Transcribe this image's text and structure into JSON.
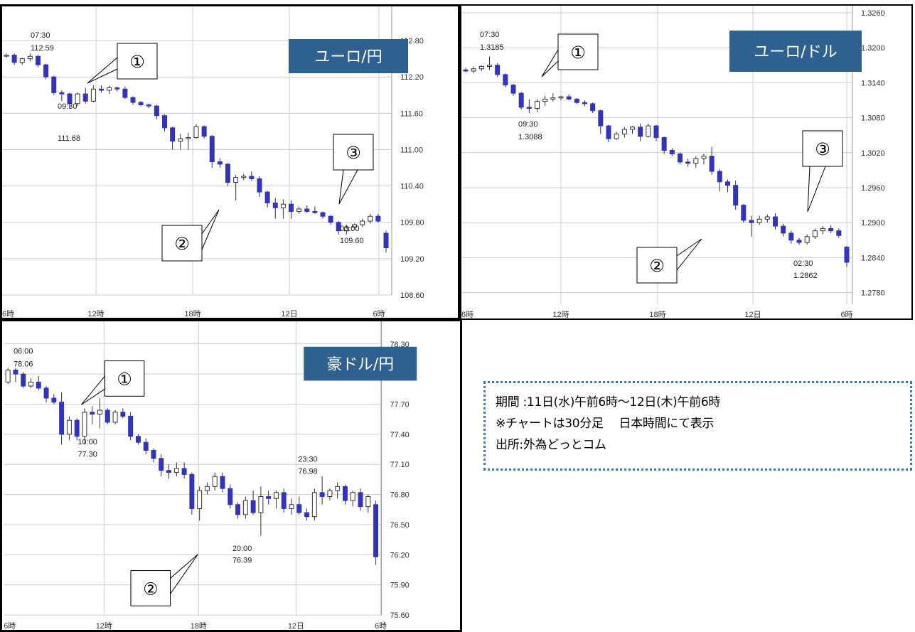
{
  "info": {
    "line1": "期間 :11日(水)午前6時～12日(木)午前6時",
    "line2": "※チャートは30分足　 日本時間にて表示",
    "line3": "出所:外為どっとコム"
  },
  "colors": {
    "bearish": "#3333bb",
    "bullish": "#ffffff",
    "badge": "#2e6190",
    "grid": "#cccccc"
  },
  "chart_data": [
    {
      "id": "eurjpy",
      "type": "candlestick",
      "title": "ユーロ/円",
      "ylim": [
        108.6,
        113.2
      ],
      "yticks": [
        "112.80",
        "112.20",
        "111.60",
        "111.00",
        "110.40",
        "109.80",
        "109.20",
        "108.60"
      ],
      "xticks": [
        "6時",
        "12時",
        "18時",
        "12日",
        "6時"
      ],
      "callouts": [
        "①",
        "②",
        "③"
      ],
      "annotations": [
        {
          "time": "07:30",
          "value": "112.59"
        },
        {
          "time": "09:30",
          "value": "111.68"
        },
        {
          "time": "03:00",
          "value": "109.60"
        }
      ],
      "ohlc": [
        [
          112.56,
          112.59,
          112.52,
          112.56
        ],
        [
          112.56,
          112.59,
          112.4,
          112.44
        ],
        [
          112.44,
          112.52,
          112.4,
          112.5
        ],
        [
          112.5,
          112.59,
          112.46,
          112.54
        ],
        [
          112.54,
          112.56,
          112.36,
          112.4
        ],
        [
          112.4,
          112.42,
          112.16,
          112.2
        ],
        [
          112.2,
          112.22,
          111.9,
          111.94
        ],
        [
          111.94,
          111.98,
          111.8,
          111.92
        ],
        [
          111.92,
          111.94,
          111.68,
          111.76
        ],
        [
          111.76,
          111.94,
          111.72,
          111.92
        ],
        [
          111.92,
          112.02,
          111.76,
          111.8
        ],
        [
          111.8,
          112.06,
          111.78,
          112.0
        ],
        [
          112.0,
          112.06,
          111.94,
          111.98
        ],
        [
          111.98,
          112.06,
          111.92,
          112.02
        ],
        [
          112.02,
          112.04,
          111.96,
          112.0
        ],
        [
          112.0,
          112.04,
          111.84,
          111.86
        ],
        [
          111.86,
          111.88,
          111.74,
          111.78
        ],
        [
          111.78,
          111.8,
          111.72,
          111.74
        ],
        [
          111.74,
          111.76,
          111.68,
          111.72
        ],
        [
          111.72,
          111.74,
          111.5,
          111.56
        ],
        [
          111.56,
          111.58,
          111.3,
          111.36
        ],
        [
          111.36,
          111.38,
          111.0,
          111.14
        ],
        [
          111.14,
          111.26,
          111.0,
          111.18
        ],
        [
          111.18,
          111.28,
          111.0,
          111.2
        ],
        [
          111.2,
          111.42,
          111.18,
          111.38
        ],
        [
          111.38,
          111.4,
          111.18,
          111.22
        ],
        [
          111.22,
          111.24,
          110.7,
          110.8
        ],
        [
          110.8,
          110.86,
          110.7,
          110.76
        ],
        [
          110.76,
          110.78,
          110.4,
          110.46
        ],
        [
          110.46,
          110.58,
          110.16,
          110.54
        ],
        [
          110.54,
          110.6,
          110.5,
          110.56
        ],
        [
          110.56,
          110.64,
          110.48,
          110.52
        ],
        [
          110.52,
          110.56,
          110.22,
          110.3
        ],
        [
          110.3,
          110.32,
          110.04,
          110.12
        ],
        [
          110.12,
          110.2,
          109.86,
          110.04
        ],
        [
          110.04,
          110.18,
          109.86,
          110.1
        ],
        [
          110.1,
          110.16,
          109.86,
          109.98
        ],
        [
          109.98,
          110.06,
          109.94,
          110.02
        ],
        [
          110.02,
          110.08,
          109.96,
          109.98
        ],
        [
          109.98,
          110.06,
          109.94,
          109.96
        ],
        [
          109.96,
          109.98,
          109.86,
          109.9
        ],
        [
          109.9,
          109.92,
          109.76,
          109.8
        ],
        [
          109.8,
          109.82,
          109.6,
          109.66
        ],
        [
          109.66,
          109.76,
          109.6,
          109.72
        ],
        [
          109.72,
          109.78,
          109.68,
          109.76
        ],
        [
          109.76,
          109.86,
          109.72,
          109.82
        ],
        [
          109.82,
          109.94,
          109.78,
          109.9
        ],
        [
          109.9,
          109.94,
          109.8,
          109.82
        ],
        [
          109.62,
          109.66,
          109.3,
          109.38
        ]
      ]
    },
    {
      "id": "eurusd",
      "type": "candlestick",
      "title": "ユーロ/ドル",
      "ylim": [
        1.276,
        1.326
      ],
      "yticks": [
        "1.3260",
        "1.3200",
        "1.3140",
        "1.3080",
        "1.3020",
        "1.2960",
        "1.2900",
        "1.2840",
        "1.2780"
      ],
      "xticks": [
        "6時",
        "12時",
        "18時",
        "12日",
        "6時"
      ],
      "callouts": [
        "①",
        "③",
        "②"
      ],
      "annotations": [
        {
          "time": "07:30",
          "value": "1.3185"
        },
        {
          "time": "09:30",
          "value": "1.3088"
        },
        {
          "time": "02:30",
          "value": "1.2862"
        }
      ],
      "ohlc": [
        [
          1.3162,
          1.3166,
          1.3158,
          1.316
        ],
        [
          1.316,
          1.3168,
          1.3156,
          1.3164
        ],
        [
          1.3164,
          1.317,
          1.316,
          1.3168
        ],
        [
          1.3168,
          1.3185,
          1.3162,
          1.317
        ],
        [
          1.317,
          1.3174,
          1.315,
          1.3154
        ],
        [
          1.3154,
          1.3156,
          1.3132,
          1.3136
        ],
        [
          1.3136,
          1.3138,
          1.3118,
          1.3122
        ],
        [
          1.3122,
          1.3124,
          1.3094,
          1.3098
        ],
        [
          1.3098,
          1.3112,
          1.3088,
          1.3096
        ],
        [
          1.3096,
          1.3112,
          1.309,
          1.3108
        ],
        [
          1.3108,
          1.3118,
          1.31,
          1.3112
        ],
        [
          1.3112,
          1.3122,
          1.3108,
          1.3114
        ],
        [
          1.3114,
          1.3118,
          1.311,
          1.3116
        ],
        [
          1.3116,
          1.312,
          1.311,
          1.3112
        ],
        [
          1.3112,
          1.3114,
          1.3104,
          1.3106
        ],
        [
          1.3106,
          1.311,
          1.31,
          1.3104
        ],
        [
          1.3104,
          1.3106,
          1.3088,
          1.3092
        ],
        [
          1.3092,
          1.3094,
          1.3052,
          1.3066
        ],
        [
          1.3066,
          1.3068,
          1.3038,
          1.3044
        ],
        [
          1.3044,
          1.3056,
          1.3042,
          1.3052
        ],
        [
          1.3052,
          1.3064,
          1.3046,
          1.306
        ],
        [
          1.306,
          1.3066,
          1.3052,
          1.3064
        ],
        [
          1.3064,
          1.307,
          1.304,
          1.3048
        ],
        [
          1.3048,
          1.307,
          1.3046,
          1.3066
        ],
        [
          1.3066,
          1.3068,
          1.304,
          1.3046
        ],
        [
          1.3046,
          1.3048,
          1.3018,
          1.3024
        ],
        [
          1.3024,
          1.3028,
          1.3014,
          1.3018
        ],
        [
          1.3018,
          1.302,
          1.3,
          1.3004
        ],
        [
          1.3004,
          1.301,
          1.2996,
          1.3002
        ],
        [
          1.3002,
          1.3014,
          1.2994,
          1.301
        ],
        [
          1.301,
          1.3018,
          1.3,
          1.3014
        ],
        [
          1.3014,
          1.303,
          1.2982,
          1.2988
        ],
        [
          1.2988,
          1.2992,
          1.2954,
          1.297
        ],
        [
          1.297,
          1.2974,
          1.2952,
          1.2964
        ],
        [
          1.2964,
          1.2972,
          1.2922,
          1.293
        ],
        [
          1.293,
          1.2932,
          1.29,
          1.2904
        ],
        [
          1.2904,
          1.2912,
          1.2876,
          1.29
        ],
        [
          1.29,
          1.2912,
          1.2896,
          1.2906
        ],
        [
          1.2906,
          1.2914,
          1.29,
          1.291
        ],
        [
          1.291,
          1.2916,
          1.2888,
          1.2894
        ],
        [
          1.2894,
          1.2898,
          1.2876,
          1.2882
        ],
        [
          1.2882,
          1.2886,
          1.2864,
          1.287
        ],
        [
          1.287,
          1.2874,
          1.2862,
          1.2866
        ],
        [
          1.2866,
          1.288,
          1.2862,
          1.2876
        ],
        [
          1.2876,
          1.289,
          1.2872,
          1.2886
        ],
        [
          1.2886,
          1.2894,
          1.288,
          1.289
        ],
        [
          1.289,
          1.2896,
          1.2882,
          1.2886
        ],
        [
          1.2886,
          1.289,
          1.2874,
          1.2878
        ],
        [
          1.2858,
          1.286,
          1.2824,
          1.2832
        ]
      ]
    },
    {
      "id": "audjpy",
      "type": "candlestick",
      "title": "豪ドル/円",
      "ylim": [
        75.6,
        78.3
      ],
      "yticks": [
        "78.30",
        "78.00",
        "77.70",
        "77.40",
        "77.10",
        "76.80",
        "76.50",
        "76.20",
        "75.90",
        "75.60"
      ],
      "xticks": [
        "6時",
        "12時",
        "18時",
        "12日",
        "6時"
      ],
      "callouts": [
        "①",
        "②"
      ],
      "annotations": [
        {
          "time": "06:00",
          "value": "78.06"
        },
        {
          "time": "10:00",
          "value": "77.30"
        },
        {
          "time": "23:30",
          "value": "76.98"
        },
        {
          "time": "20:00",
          "value": "76.39"
        }
      ],
      "ohlc": [
        [
          77.92,
          78.06,
          77.9,
          78.04
        ],
        [
          78.04,
          78.06,
          77.92,
          78.0
        ],
        [
          78.0,
          78.02,
          77.86,
          77.88
        ],
        [
          77.88,
          77.96,
          77.86,
          77.92
        ],
        [
          77.92,
          77.98,
          77.84,
          77.86
        ],
        [
          77.86,
          77.88,
          77.72,
          77.76
        ],
        [
          77.76,
          77.8,
          77.7,
          77.72
        ],
        [
          77.72,
          77.82,
          77.3,
          77.4
        ],
        [
          77.4,
          77.58,
          77.34,
          77.54
        ],
        [
          77.54,
          77.56,
          77.34,
          77.38
        ],
        [
          77.38,
          77.66,
          77.3,
          77.62
        ],
        [
          77.62,
          77.68,
          77.5,
          77.6
        ],
        [
          77.6,
          77.76,
          77.46,
          77.64
        ],
        [
          77.64,
          77.66,
          77.5,
          77.52
        ],
        [
          77.52,
          77.64,
          77.5,
          77.62
        ],
        [
          77.62,
          77.66,
          77.56,
          77.58
        ],
        [
          77.58,
          77.62,
          77.34,
          77.38
        ],
        [
          77.38,
          77.4,
          77.3,
          77.32
        ],
        [
          77.32,
          77.36,
          77.2,
          77.24
        ],
        [
          77.24,
          77.26,
          77.12,
          77.16
        ],
        [
          77.16,
          77.2,
          76.98,
          77.04
        ],
        [
          77.04,
          77.1,
          76.96,
          77.02
        ],
        [
          77.02,
          77.12,
          76.98,
          77.06
        ],
        [
          77.06,
          77.12,
          76.96,
          77.0
        ],
        [
          77.0,
          77.02,
          76.6,
          76.66
        ],
        [
          76.66,
          76.88,
          76.54,
          76.84
        ],
        [
          76.84,
          76.92,
          76.8,
          76.88
        ],
        [
          76.88,
          77.02,
          76.84,
          76.98
        ],
        [
          76.98,
          77.02,
          76.82,
          76.86
        ],
        [
          76.86,
          76.9,
          76.66,
          76.7
        ],
        [
          76.7,
          76.72,
          76.56,
          76.6
        ],
        [
          76.6,
          76.78,
          76.56,
          76.74
        ],
        [
          76.74,
          76.84,
          76.6,
          76.62
        ],
        [
          76.62,
          76.88,
          76.39,
          76.78
        ],
        [
          76.78,
          76.84,
          76.7,
          76.76
        ],
        [
          76.76,
          76.84,
          76.66,
          76.82
        ],
        [
          76.82,
          76.86,
          76.62,
          76.66
        ],
        [
          76.66,
          76.76,
          76.6,
          76.7
        ],
        [
          76.7,
          76.78,
          76.6,
          76.62
        ],
        [
          76.62,
          76.66,
          76.54,
          76.58
        ],
        [
          76.58,
          76.86,
          76.54,
          76.82
        ],
        [
          76.82,
          76.98,
          76.7,
          76.78
        ],
        [
          76.78,
          76.86,
          76.74,
          76.84
        ],
        [
          76.84,
          76.92,
          76.76,
          76.88
        ],
        [
          76.88,
          76.9,
          76.7,
          76.74
        ],
        [
          76.74,
          76.84,
          76.68,
          76.82
        ],
        [
          76.82,
          76.86,
          76.64,
          76.68
        ],
        [
          76.68,
          76.8,
          76.62,
          76.78
        ],
        [
          76.7,
          76.74,
          76.1,
          76.18
        ]
      ]
    }
  ]
}
